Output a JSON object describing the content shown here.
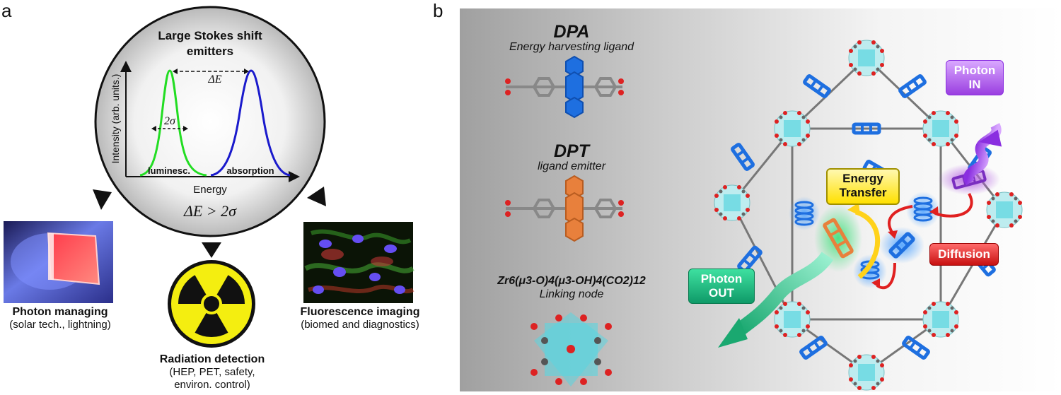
{
  "panel_a": {
    "letter": "a",
    "circle": {
      "title_line1": "Large Stokes shift",
      "title_line2": "emitters",
      "y_axis_label": "Intensity (arb. units.)",
      "x_axis_label": "Energy",
      "delta_e_label": "ΔE",
      "sigma_label": "2σ",
      "luminescence_label": "luminesc.",
      "absorption_label": "absorption",
      "condition": "ΔE > 2σ",
      "luminescence_color": "#22dd22",
      "absorption_color": "#1a1acc"
    },
    "photon_managing": {
      "title": "Photon managing",
      "subtitle": "(solar tech., lightning)"
    },
    "radiation_detection": {
      "title": "Radiation detection",
      "subtitle_line1": "(HEP, PET, safety,",
      "subtitle_line2": "environ. control)"
    },
    "fluorescence_imaging": {
      "title": "Fluorescence imaging",
      "subtitle": "(biomed and diagnostics)"
    }
  },
  "panel_b": {
    "letter": "b",
    "dpa": {
      "title": "DPA",
      "subtitle": "Energy harvesting ligand",
      "color": "#1e6fe0"
    },
    "dpt": {
      "title": "DPT",
      "subtitle": "ligand emitter",
      "color": "#e8803c"
    },
    "node": {
      "formula": "Zr6(μ3-O)4(μ3-OH)4(CO2)12",
      "subtitle": "Linking node",
      "color": "#5ad6e0"
    },
    "photon_in": {
      "line1": "Photon",
      "line2": "IN",
      "color": "#b15ce0"
    },
    "energy_transfer": {
      "line1": "Energy",
      "line2": "Transfer",
      "color": "#ffe84a"
    },
    "diffusion": {
      "label": "Diffusion",
      "color": "#e02020"
    },
    "photon_out": {
      "line1": "Photon",
      "line2": "OUT",
      "color": "#1fc08a"
    }
  }
}
